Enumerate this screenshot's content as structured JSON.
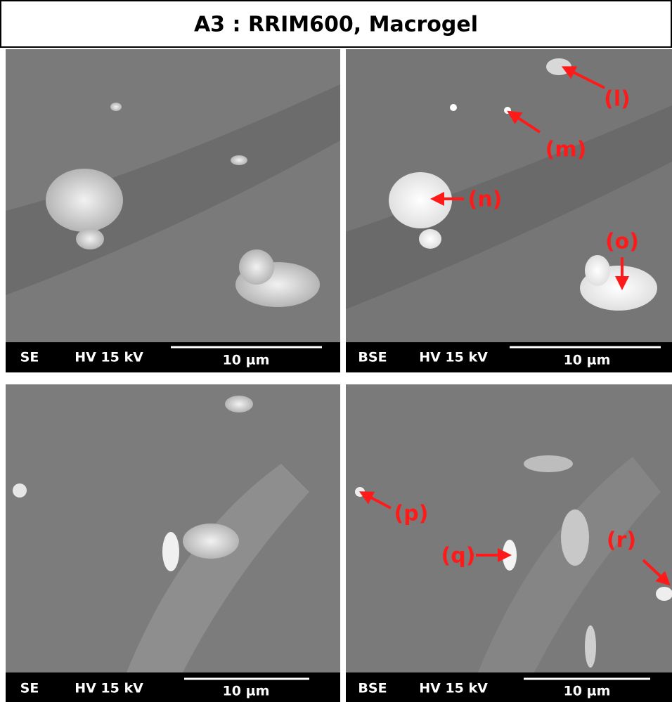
{
  "title": "A3 : RRIM600, Macrogel",
  "panels": [
    {
      "detector": "SE",
      "voltage": "HV 15 kV",
      "scale": "10 µm"
    },
    {
      "detector": "BSE",
      "voltage": "HV 15 kV",
      "scale": "10 µm",
      "annotations": [
        "(l)",
        "(m)",
        "(n)",
        "(o)"
      ]
    },
    {
      "detector": "SE",
      "voltage": "HV 15 kV",
      "scale": "10 µm"
    },
    {
      "detector": "BSE",
      "voltage": "HV 15 kV",
      "scale": "10 µm",
      "annotations": [
        "(p)",
        "(q)",
        "(r)"
      ]
    }
  ]
}
